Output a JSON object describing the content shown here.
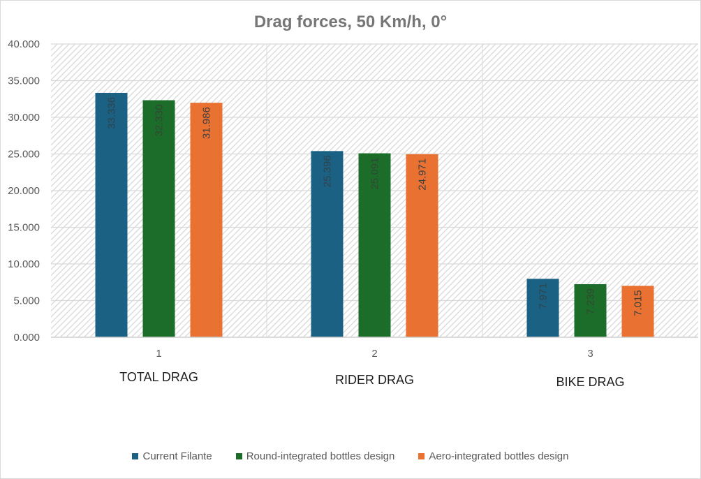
{
  "chart_data": {
    "type": "bar",
    "title": "Drag forces, 50 Km/h, 0°",
    "xlabel": "",
    "ylabel": "",
    "ylim": [
      0,
      40
    ],
    "yticks": [
      "0.000",
      "5.000",
      "10.000",
      "15.000",
      "20.000",
      "25.000",
      "30.000",
      "35.000",
      "40.000"
    ],
    "ytick_values": [
      0,
      5,
      10,
      15,
      20,
      25,
      30,
      35,
      40
    ],
    "categories": [
      "1",
      "2",
      "3"
    ],
    "category_labels": [
      "TOTAL DRAG",
      "RIDER DRAG",
      "BIKE DRAG"
    ],
    "series": [
      {
        "name": "Current Filante",
        "color": "#1a6183",
        "values": [
          33.336,
          25.396,
          7.971
        ],
        "labels": [
          "33.336",
          "25.396",
          "7.971"
        ]
      },
      {
        "name": "Round-integrated bottles design",
        "color": "#1d6d2a",
        "values": [
          32.33,
          25.091,
          7.239
        ],
        "labels": [
          "32.330",
          "25.091",
          "7.239"
        ]
      },
      {
        "name": "Aero-integrated bottles design",
        "color": "#e97132",
        "values": [
          31.986,
          24.971,
          7.015
        ],
        "labels": [
          "31.986",
          "24.971",
          "7.015"
        ]
      }
    ],
    "grid": true,
    "legend": "bottom",
    "data_labels": "inside-rotated"
  }
}
